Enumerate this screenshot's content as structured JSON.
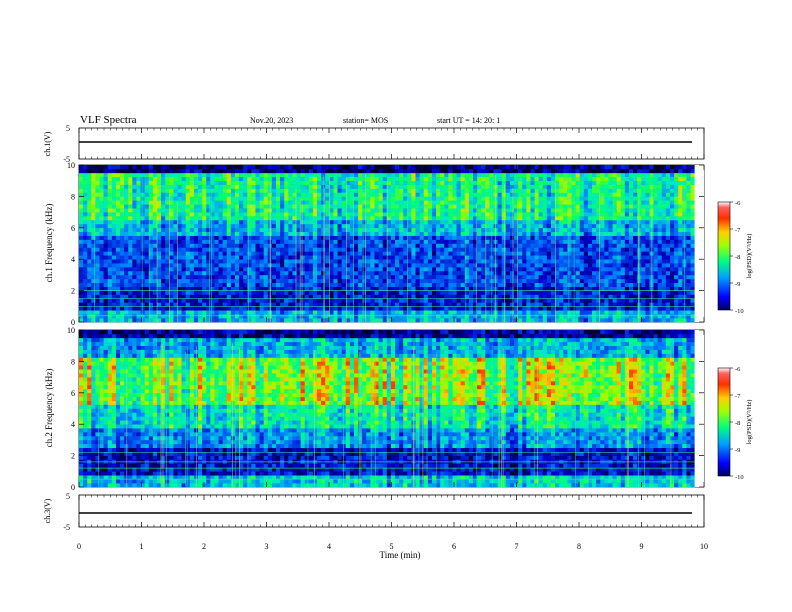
{
  "header": {
    "title": "VLF Spectra",
    "date": "Nov.20, 2023",
    "station": "station= MOS",
    "start": "start  UT  =   14: 20: 1"
  },
  "colorbar": {
    "label": "log(PSD)(V²/Hz)",
    "ticks": [
      "-6",
      "-7",
      "-8",
      "-9",
      "-10"
    ]
  },
  "chart_data": [
    {
      "type": "line",
      "panel": "ch1-voltage",
      "ylabel": "ch.1(V)",
      "ylim": [
        -5,
        5
      ],
      "yticks": [
        "5",
        "-5"
      ],
      "x": [
        0,
        10
      ],
      "values": [
        -1.5,
        -1.5
      ]
    },
    {
      "type": "heatmap",
      "panel": "ch1-spectrogram",
      "ylabel": "ch.1 Frequency (kHz)",
      "xlim": [
        0,
        9.85
      ],
      "ylim": [
        0,
        10
      ],
      "yticks": [
        "0",
        "2",
        "4",
        "6",
        "8",
        "10"
      ],
      "colorbar_range": [
        -10,
        -6
      ],
      "bands_khz": [
        0.4,
        1.0,
        1.5,
        2.0
      ]
    },
    {
      "type": "heatmap",
      "panel": "ch2-spectrogram",
      "ylabel": "ch.2 Frequency (kHz)",
      "xlim": [
        0,
        9.85
      ],
      "ylim": [
        0,
        10
      ],
      "yticks": [
        "0",
        "2",
        "4",
        "6",
        "8",
        "10"
      ],
      "colorbar_range": [
        -10,
        -6
      ],
      "bands_khz": [
        0.5,
        1.2,
        1.6,
        2.2
      ]
    },
    {
      "type": "line",
      "panel": "ch3-voltage",
      "ylabel": "ch.3(V)",
      "ylim": [
        -5,
        5
      ],
      "yticks": [
        "5",
        "-5"
      ],
      "x": [
        0,
        10
      ],
      "values": [
        -1.5,
        -1.5
      ]
    }
  ],
  "xaxis": {
    "label": "Time (min)",
    "ticks": [
      "0",
      "1",
      "2",
      "3",
      "4",
      "5",
      "6",
      "7",
      "8",
      "9",
      "10"
    ],
    "xlim": [
      0,
      10
    ]
  },
  "colors": {
    "background": "#000030",
    "low": "#00008b",
    "mid": "#00ff80",
    "high": "#ff2000"
  }
}
